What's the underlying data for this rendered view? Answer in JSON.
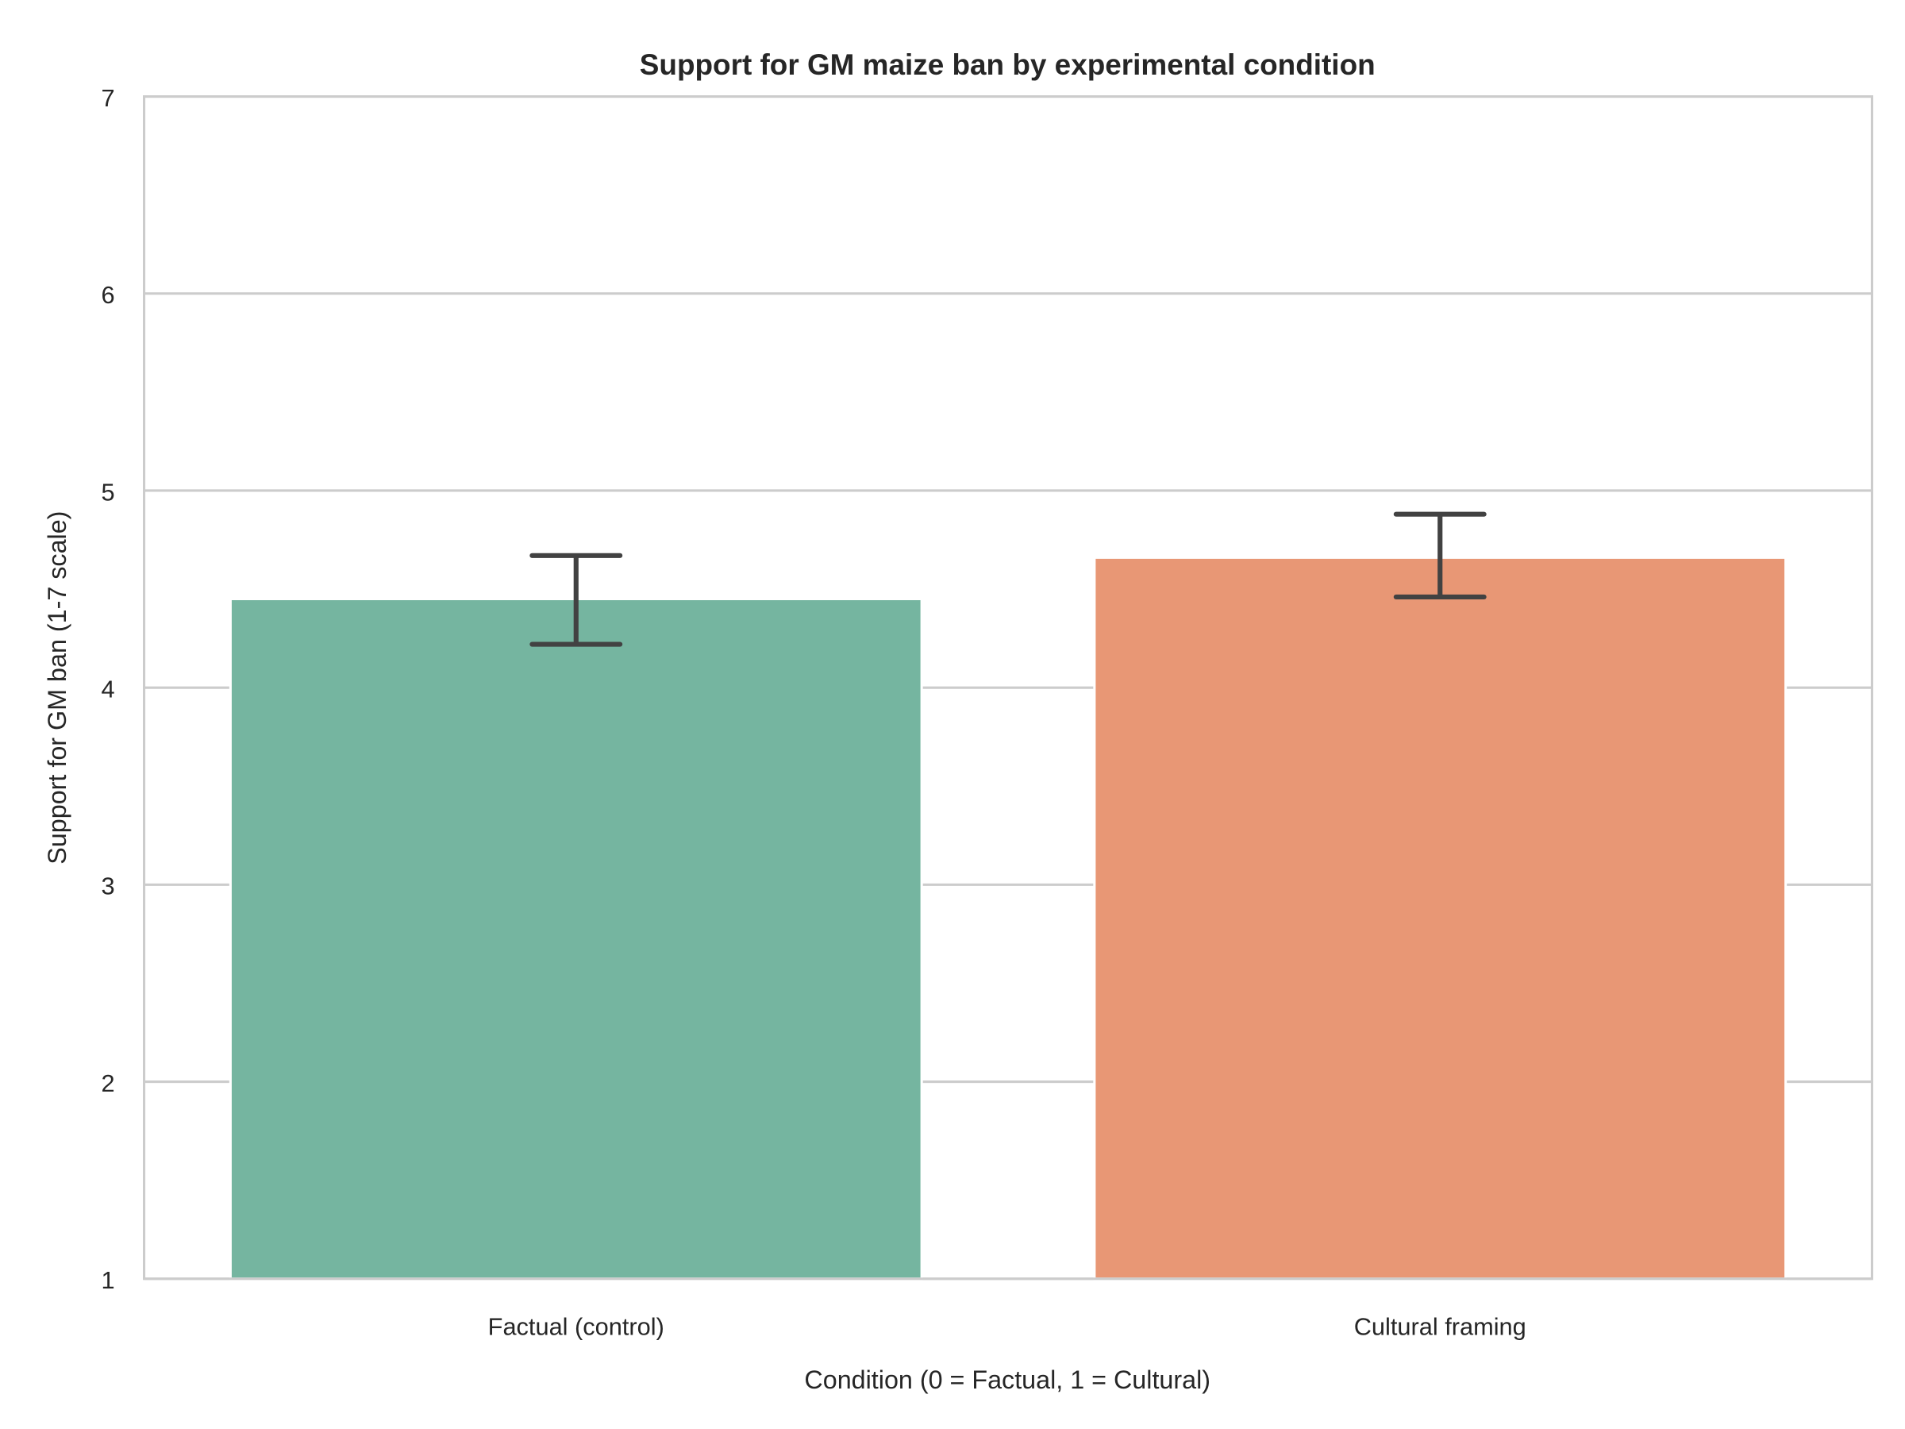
{
  "chart_data": {
    "type": "bar",
    "title": "Support for GM maize ban by experimental condition",
    "xlabel": "Condition (0 = Factual, 1 = Cultural)",
    "ylabel": "Support for GM ban (1-7 scale)",
    "ylim": [
      1,
      7
    ],
    "yticks": [
      "1",
      "2",
      "3",
      "4",
      "5",
      "6",
      "7"
    ],
    "grid": true,
    "categories": [
      "Factual (control)",
      "Cultural framing"
    ],
    "values": [
      4.45,
      4.66
    ],
    "error_low": [
      4.22,
      4.46
    ],
    "error_high": [
      4.67,
      4.88
    ],
    "colors": [
      "#75b5a0",
      "#e89775"
    ],
    "errorbar_color": "#424242"
  }
}
